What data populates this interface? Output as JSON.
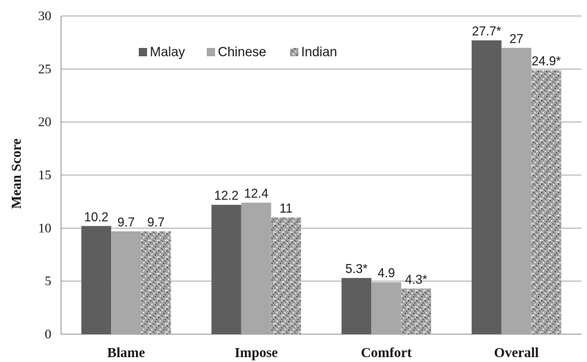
{
  "chart_data": {
    "type": "bar",
    "title": "",
    "xlabel": "",
    "ylabel": "Mean Score",
    "ylim": [
      0,
      30
    ],
    "yticks": [
      "0",
      "5",
      "10",
      "15",
      "20",
      "25",
      "30"
    ],
    "grid": true,
    "legend_position": "top-left",
    "categories": [
      "Blame",
      "Impose",
      "Comfort",
      "Overall"
    ],
    "series": [
      {
        "name": "Malay",
        "color": "#5e5e5e",
        "pattern": "solid",
        "values": [
          10.2,
          12.2,
          5.3,
          27.7
        ],
        "labels": [
          "10.2",
          "12.2",
          "5.3*",
          "27.7*"
        ]
      },
      {
        "name": "Chinese",
        "color": "#a8a8a8",
        "pattern": "solid",
        "values": [
          9.7,
          12.4,
          4.9,
          27
        ],
        "labels": [
          "9.7",
          "12.4",
          "4.9",
          "27"
        ]
      },
      {
        "name": "Indian",
        "color": "#9a9a9a",
        "pattern": "speckled",
        "values": [
          9.7,
          11,
          4.3,
          24.9
        ],
        "labels": [
          "9.7",
          "11",
          "4.3*",
          "24.9*"
        ]
      }
    ]
  }
}
